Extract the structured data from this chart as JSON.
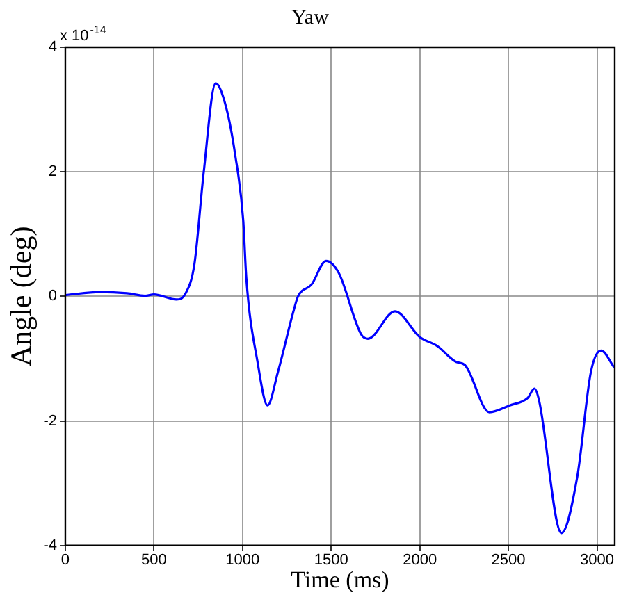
{
  "chart_data": {
    "type": "line",
    "title": "Yaw",
    "xlabel": "Time (ms)",
    "ylabel": "Angle (deg)",
    "annotations": [
      "x 10$^{-14}$"
    ],
    "x": [
      0,
      196,
      348,
      450,
      500,
      627,
      677,
      729,
      780,
      848,
      907,
      958,
      1004,
      1021,
      1085,
      1141,
      1199,
      1288,
      1313,
      1389,
      1471,
      1542,
      1669,
      1707,
      1860,
      1999,
      2100,
      2204,
      2254,
      2393,
      2508,
      2609,
      2647,
      2673,
      2799,
      2889,
      2965,
      3023,
      3097
    ],
    "series": [
      {
        "color": "#0000ff",
        "values": [
          0.02,
          0.07,
          0.05,
          0.01,
          0.03,
          -0.05,
          0.04,
          0.53,
          1.97,
          3.42,
          3.04,
          2.28,
          1.21,
          0.3,
          -1.06,
          -1.75,
          -1.22,
          -0.23,
          0,
          0.19,
          0.57,
          0.38,
          -0.61,
          -0.68,
          -0.24,
          -0.65,
          -0.8,
          -1.05,
          -1.1,
          -1.86,
          -1.75,
          -1.63,
          -1.48,
          -1.67,
          -3.8,
          -2.89,
          -1.22,
          -0.87,
          -1.14
        ]
      }
    ],
    "xlim": [
      0,
      3100
    ],
    "xticks": [
      0,
      500,
      1000,
      1500,
      2000,
      2500,
      3000
    ],
    "ylim": [
      -4,
      4
    ],
    "yticks": [
      -4,
      -2,
      0,
      2,
      4
    ],
    "grid": true,
    "legend": false,
    "marker": "none",
    "line_style": "solid"
  }
}
